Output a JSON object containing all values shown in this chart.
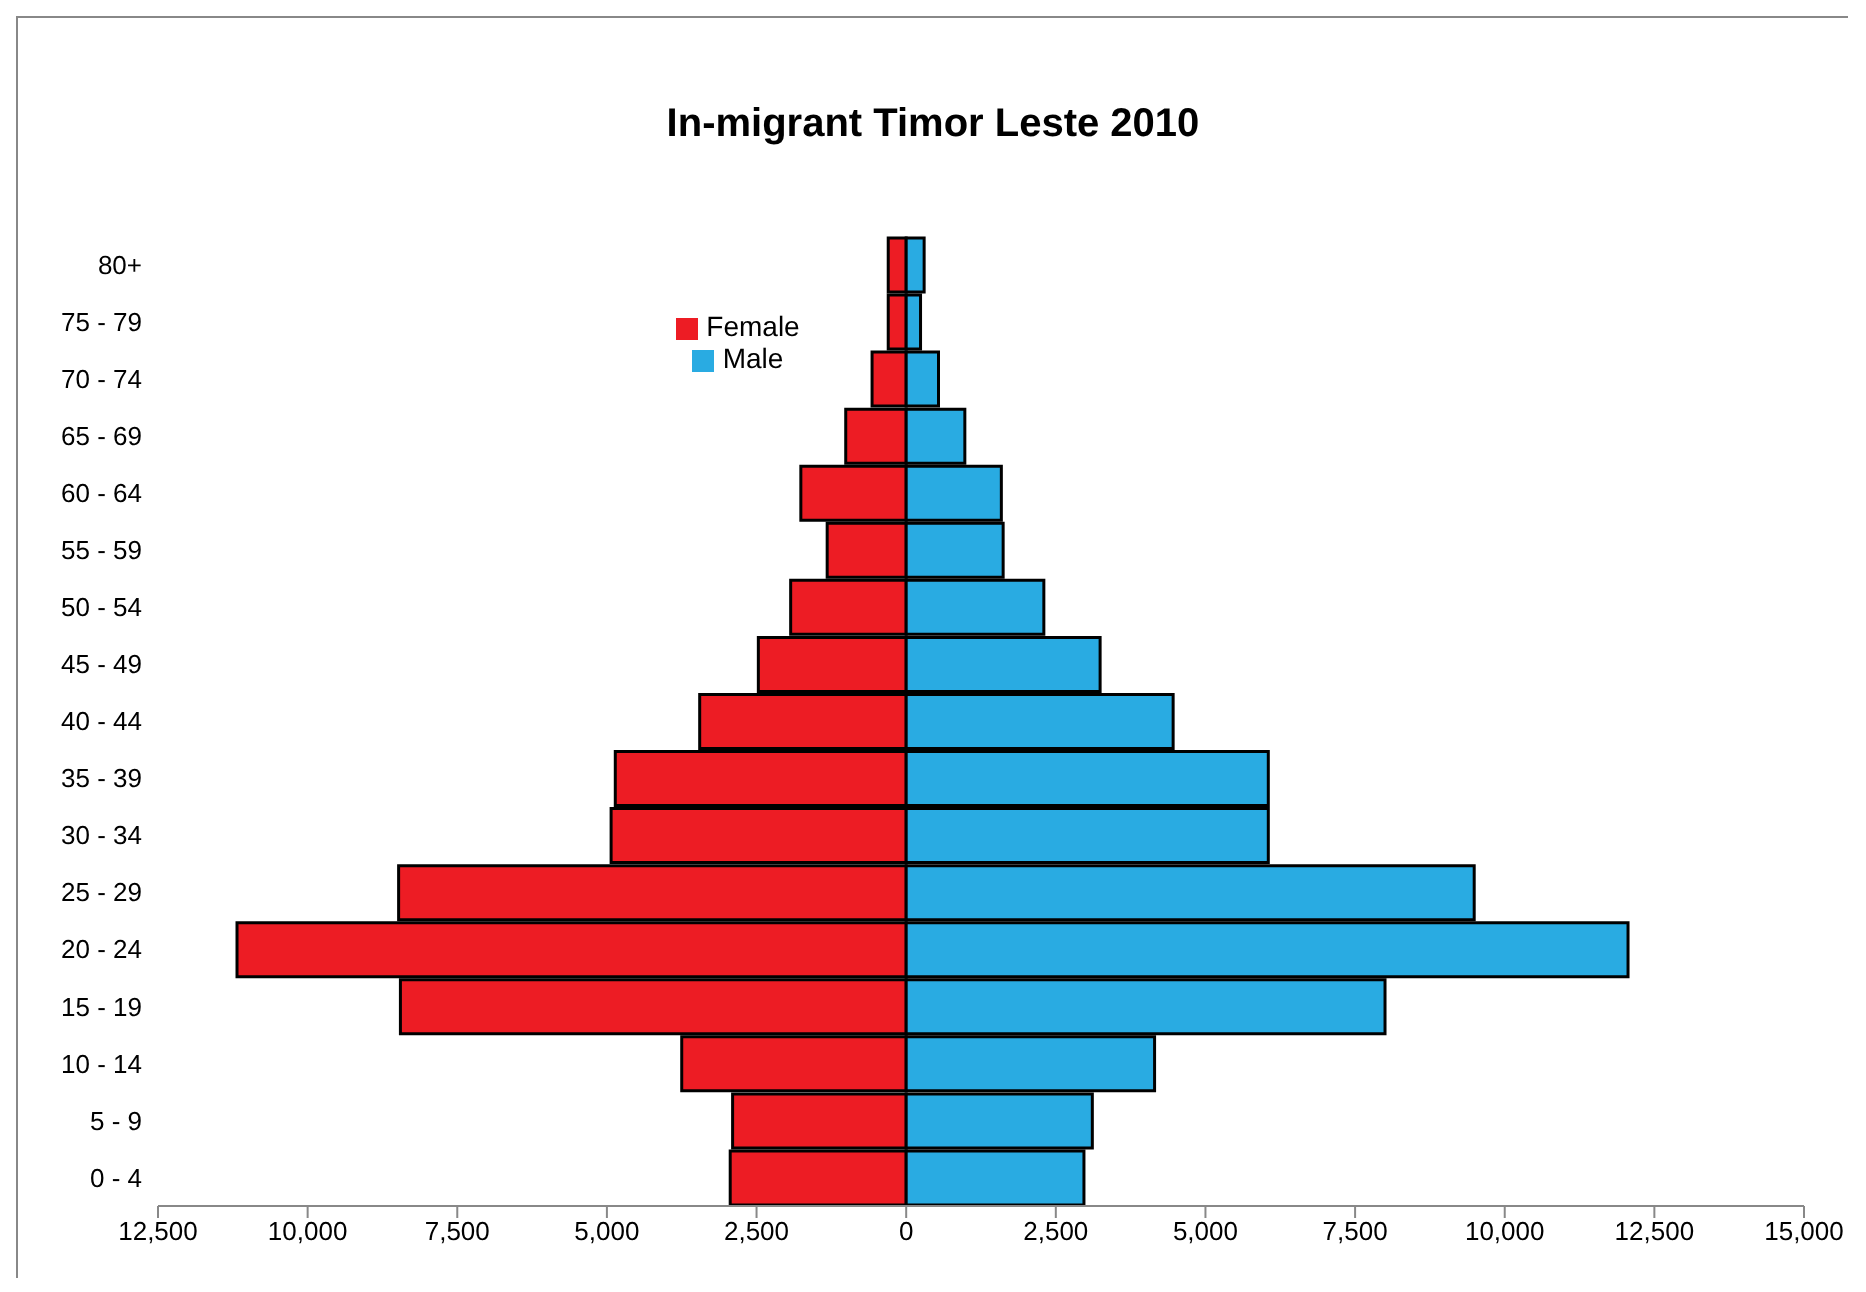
{
  "chart_data": {
    "type": "bar",
    "orientation": "horizontal",
    "stacked": true,
    "title": "In-migrant Timor Leste 2010",
    "categories": [
      "80+",
      "75 - 79",
      "70 - 74",
      "65 - 69",
      "60 - 64",
      "55 - 59",
      "50 - 54",
      "45 - 49",
      "40 - 44",
      "35 - 39",
      "30 - 34",
      "25 - 29",
      "20 - 24",
      "15 - 19",
      "10 - 14",
      "5 - 9",
      "0 - 4"
    ],
    "series": [
      {
        "name": "Female",
        "color": "#ed1c24",
        "values": [
          -300,
          -300,
          -570,
          -1010,
          -1760,
          -1320,
          -1930,
          -2470,
          -3450,
          -4860,
          -4930,
          -8480,
          -11180,
          -8450,
          -3750,
          -2900,
          -2940
        ]
      },
      {
        "name": "Male",
        "color": "#29abe2",
        "values": [
          300,
          240,
          540,
          980,
          1590,
          1620,
          2300,
          3240,
          4460,
          6050,
          6050,
          9490,
          12060,
          8000,
          4150,
          3110,
          2970
        ]
      }
    ],
    "xlim": [
      -12500,
      15000
    ],
    "xticks": [
      {
        "value": -12500,
        "label": "12,500"
      },
      {
        "value": -10000,
        "label": "10,000"
      },
      {
        "value": -7500,
        "label": "7,500"
      },
      {
        "value": -5000,
        "label": "5,000"
      },
      {
        "value": -2500,
        "label": "2,500"
      },
      0,
      {
        "value": 2500,
        "label": "2,500"
      },
      {
        "value": 5000,
        "label": "5,000"
      },
      {
        "value": 7500,
        "label": "7,500"
      },
      {
        "value": 10000,
        "label": "10,000"
      },
      {
        "value": 12500,
        "label": "12,500"
      },
      {
        "value": 15000,
        "label": "15,000"
      }
    ],
    "grid": false,
    "legend": "top"
  }
}
